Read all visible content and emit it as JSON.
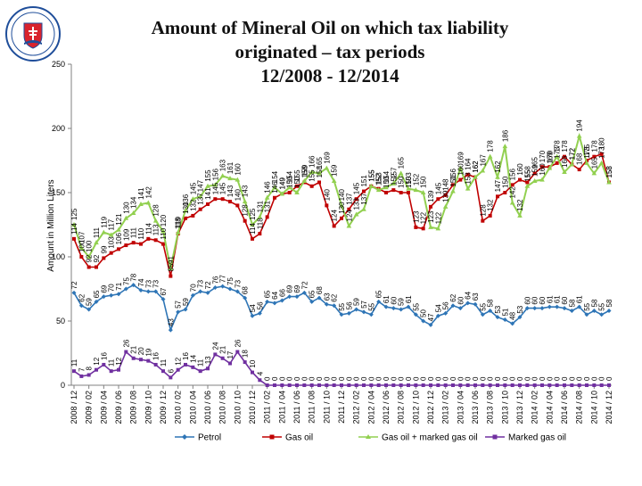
{
  "chart_data": {
    "type": "line",
    "title_lines": [
      "Amount of Mineral Oil on which tax liability",
      "originated – tax periods",
      "12/2008 - 12/2014"
    ],
    "ylabel": "Amount in Million Liters",
    "xlabel": "",
    "ylim": [
      0,
      250
    ],
    "yticks": [
      0,
      50,
      100,
      150,
      200,
      250
    ],
    "grid": false,
    "legend_position": "bottom",
    "categories": [
      "2008 / 12",
      "2009 / 01",
      "2009 / 02",
      "2009 / 03",
      "2009 / 04",
      "2009 / 05",
      "2009 / 06",
      "2009 / 07",
      "2009 / 08",
      "2009 / 09",
      "2009 / 10",
      "2009 / 11",
      "2009 / 12",
      "2010 / 01",
      "2010 / 02",
      "2010 / 03",
      "2010 / 04",
      "2010 / 05",
      "2010 / 06",
      "2010 / 07",
      "2010 / 08",
      "2010 / 09",
      "2010 / 10",
      "2010 / 11",
      "2010 / 12",
      "2011 / 01",
      "2011 / 02",
      "2011 / 03",
      "2011 / 04",
      "2011 / 05",
      "2011 / 06",
      "2011 / 07",
      "2011 / 08",
      "2011 / 09",
      "2011 / 10",
      "2011 / 11",
      "2011 / 12",
      "2012 / 01",
      "2012 / 02",
      "2012 / 03",
      "2012 / 04",
      "2012 / 05",
      "2012 / 06",
      "2012 / 07",
      "2012 / 08",
      "2012 / 09",
      "2012 / 10",
      "2012 / 11",
      "2012 / 12",
      "2013 / 01",
      "2013 / 02",
      "2013 / 03",
      "2013 / 04",
      "2013 / 05",
      "2013 / 06",
      "2013 / 07",
      "2013 / 08",
      "2013 / 09",
      "2013 / 10",
      "2013 / 11",
      "2013 / 12",
      "2014 / 01",
      "2014 / 02",
      "2014 / 03",
      "2014 / 04",
      "2014 / 05",
      "2014 / 06",
      "2014 / 07",
      "2014 / 08",
      "2014 / 09",
      "2014 / 10",
      "2014 / 11",
      "2014 / 12"
    ],
    "tick_labels": [
      "2008 / 12",
      "2009 / 02",
      "2009 / 04",
      "2009 / 06",
      "2009 / 08",
      "2009 / 10",
      "2009 / 12",
      "2010 / 02",
      "2010 / 04",
      "2010 / 06",
      "2010 / 08",
      "2010 / 10",
      "2010 / 12",
      "2011 / 02",
      "2011 / 04",
      "2011 / 06",
      "2011 / 08",
      "2011 / 10",
      "2011 / 12",
      "2012 / 02",
      "2012 / 04",
      "2012 / 06",
      "2012 / 08",
      "2012 / 10",
      "2012 / 12",
      "2013 / 02",
      "2013 / 04",
      "2013 / 06",
      "2013 / 08",
      "2013 / 10",
      "2013 / 12",
      "2014 / 02",
      "2014 / 04",
      "2014 / 06",
      "2014 / 08",
      "2014 / 10",
      "2014 / 12"
    ],
    "series": [
      {
        "name": "Petrol",
        "color": "#2e75b6",
        "values": [
          72,
          62,
          59,
          65,
          69,
          70,
          71,
          75,
          78,
          74,
          73,
          73,
          67,
          43,
          57,
          59,
          70,
          73,
          72,
          76,
          77,
          75,
          73,
          68,
          54,
          56,
          65,
          64,
          66,
          69,
          69,
          72,
          65,
          68,
          63,
          62,
          55,
          56,
          59,
          57,
          55,
          65,
          61,
          60,
          59,
          61,
          55,
          50,
          47,
          54,
          56,
          62,
          60,
          64,
          63,
          55,
          58,
          53,
          51,
          48,
          53,
          60,
          60,
          60,
          61,
          61,
          60,
          58,
          61,
          55,
          58,
          55,
          58
        ]
      },
      {
        "name": "Gas oil",
        "color": "#c00000",
        "values": [
          114,
          100,
          92,
          92,
          99,
          103,
          106,
          109,
          111,
          110,
          114,
          113,
          110,
          85,
          118,
          130,
          132,
          137,
          141,
          145,
          145,
          143,
          140,
          128,
          114,
          118,
          131,
          146,
          149,
          150,
          155,
          158,
          155,
          158,
          140,
          124,
          130,
          137,
          145,
          151,
          155,
          153,
          150,
          152,
          150,
          150,
          123,
          122,
          139,
          145,
          148,
          156,
          160,
          164,
          162,
          128,
          132,
          147,
          150,
          156,
          160,
          158,
          165,
          170,
          170,
          173,
          178,
          172,
          168,
          175,
          178,
          180,
          158
        ]
      },
      {
        "name": "Gas oil + marked gas oil",
        "color": "#92d050",
        "values": [
          125,
          107,
          100,
          111,
          119,
          117,
          121,
          130,
          134,
          141,
          142,
          128,
          120,
          91,
          119,
          136,
          145,
          147,
          155,
          156,
          163,
          161,
          160,
          143,
          125,
          131,
          146,
          154,
          149,
          154,
          150,
          159,
          166,
          165,
          169,
          159,
          140,
          124,
          133,
          137,
          155,
          152,
          154,
          157,
          165,
          153,
          152,
          150,
          123,
          122,
          139,
          151,
          169,
          153,
          162,
          167,
          178,
          162,
          186,
          142,
          132,
          155,
          159,
          160,
          169,
          178,
          166,
          172,
          194,
          173,
          165,
          173,
          158
        ]
      },
      {
        "name": "Marked gas oil",
        "color": "#7030a0",
        "values": [
          11,
          7,
          8,
          12,
          16,
          11,
          12,
          26,
          21,
          20,
          19,
          16,
          11,
          6,
          12,
          16,
          14,
          11,
          13,
          24,
          21,
          17,
          26,
          18,
          10,
          4,
          0,
          0,
          0,
          0,
          0,
          0,
          0,
          0,
          0,
          0,
          0,
          0,
          0,
          0,
          0,
          0,
          0,
          0,
          0,
          0,
          0,
          0,
          0,
          0,
          0,
          0,
          0,
          0,
          0,
          0,
          0,
          0,
          0,
          0,
          0,
          0,
          0,
          0,
          0,
          0,
          0,
          0,
          0,
          0,
          0,
          0,
          0
        ]
      }
    ]
  }
}
